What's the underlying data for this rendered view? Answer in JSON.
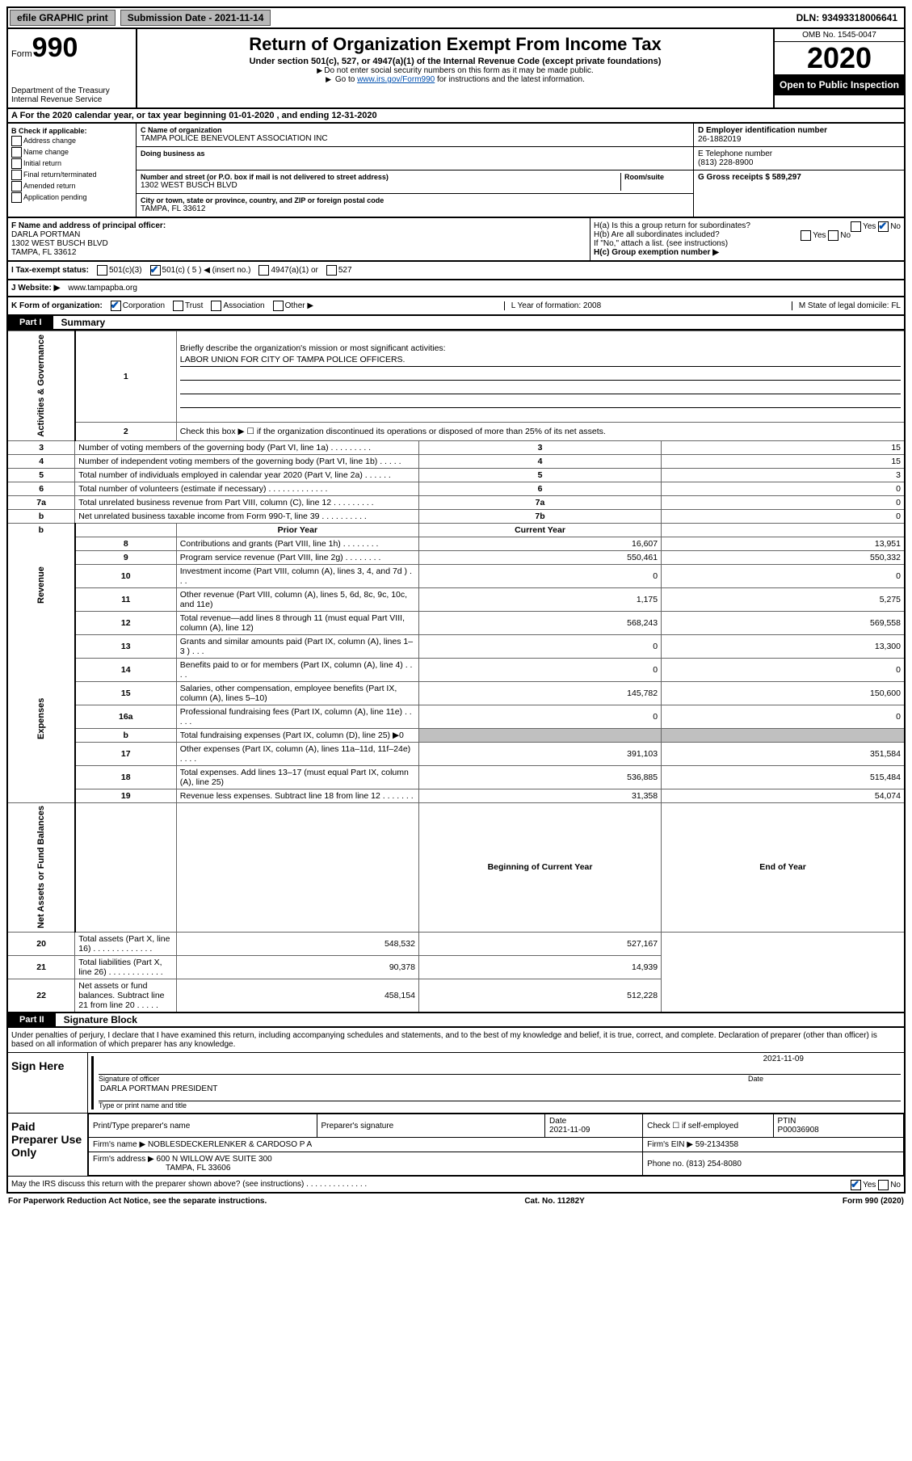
{
  "topbar": {
    "efile": "efile GRAPHIC print",
    "sub_label": "Submission Date - 2021-11-14",
    "dln": "DLN: 93493318006641"
  },
  "header": {
    "form_word": "Form",
    "form_number": "990",
    "dept": "Department of the Treasury\nInternal Revenue Service",
    "title": "Return of Organization Exempt From Income Tax",
    "subtitle": "Under section 501(c), 527, or 4947(a)(1) of the Internal Revenue Code (except private foundations)",
    "note1": "Do not enter social security numbers on this form as it may be made public.",
    "note2_pre": "Go to ",
    "note2_link": "www.irs.gov/Form990",
    "note2_post": " for instructions and the latest information.",
    "omb": "OMB No. 1545-0047",
    "year": "2020",
    "open": "Open to Public Inspection"
  },
  "rowA": "A For the 2020 calendar year, or tax year beginning 01-01-2020   , and ending 12-31-2020",
  "colB": {
    "title": "B Check if applicable:",
    "opts": [
      "Address change",
      "Name change",
      "Initial return",
      "Final return/terminated",
      "Amended return",
      "Application pending"
    ]
  },
  "colC": {
    "name_lbl": "C Name of organization",
    "name": "TAMPA POLICE BENEVOLENT ASSOCIATION INC",
    "dba_lbl": "Doing business as",
    "dba": "",
    "street_lbl": "Number and street (or P.O. box if mail is not delivered to street address)",
    "room_lbl": "Room/suite",
    "street": "1302 WEST BUSCH BLVD",
    "city_lbl": "City or town, state or province, country, and ZIP or foreign postal code",
    "city": "TAMPA, FL  33612"
  },
  "colD": {
    "ein_lbl": "D Employer identification number",
    "ein": "26-1882019",
    "tel_lbl": "E Telephone number",
    "tel": "(813) 228-8900",
    "gross_lbl": "G Gross receipts $ 589,297"
  },
  "rowF": {
    "lbl": "F  Name and address of principal officer:",
    "name": "DARLA PORTMAN",
    "addr1": "1302 WEST BUSCH BLVD",
    "addr2": "TAMPA, FL  33612"
  },
  "rowH": {
    "a_q": "H(a)  Is this a group return for subordinates?",
    "a_yes": "Yes",
    "a_no": "No",
    "b_q": "H(b)  Are all subordinates included?",
    "b_note": "If \"No,\" attach a list. (see instructions)",
    "c_q": "H(c)  Group exemption number ▶"
  },
  "rowI": {
    "lbl": "I  Tax-exempt status:",
    "o1": "501(c)(3)",
    "o2": "501(c) ( 5 ) ◀ (insert no.)",
    "o3": "4947(a)(1) or",
    "o4": "527"
  },
  "rowJ": {
    "lbl": "J  Website: ▶",
    "val": "www.tampapba.org"
  },
  "rowK": {
    "lbl": "K Form of organization:",
    "o1": "Corporation",
    "o2": "Trust",
    "o3": "Association",
    "o4": "Other ▶",
    "l_lbl": "L Year of formation: 2008",
    "m_lbl": "M State of legal domicile: FL"
  },
  "part1": {
    "tag": "Part I",
    "title": "Summary",
    "q1": "Briefly describe the organization's mission or most significant activities:",
    "mission": "LABOR UNION FOR CITY OF TAMPA POLICE OFFICERS.",
    "q2": "Check this box ▶ ☐  if the organization discontinued its operations or disposed of more than 25% of its net assets.",
    "side1": "Activities & Governance",
    "side2": "Revenue",
    "side3": "Expenses",
    "side4": "Net Assets or Fund Balances",
    "hdr_prior": "Prior Year",
    "hdr_curr": "Current Year",
    "hdr_beg": "Beginning of Current Year",
    "hdr_end": "End of Year",
    "lines_gov": [
      {
        "n": "3",
        "d": "Number of voting members of the governing body (Part VI, line 1a)   .   .   .   .   .   .   .   .   .",
        "b": "3",
        "v": "15"
      },
      {
        "n": "4",
        "d": "Number of independent voting members of the governing body (Part VI, line 1b)   .   .   .   .   .",
        "b": "4",
        "v": "15"
      },
      {
        "n": "5",
        "d": "Total number of individuals employed in calendar year 2020 (Part V, line 2a)   .   .   .   .   .   .",
        "b": "5",
        "v": "3"
      },
      {
        "n": "6",
        "d": "Total number of volunteers (estimate if necessary)   .   .   .   .   .   .   .   .   .   .   .   .   .",
        "b": "6",
        "v": "0"
      },
      {
        "n": "7a",
        "d": "Total unrelated business revenue from Part VIII, column (C), line 12   .   .   .   .   .   .   .   .   .",
        "b": "7a",
        "v": "0"
      },
      {
        "n": "b",
        "d": "Net unrelated business taxable income from Form 990-T, line 39   .   .   .   .   .   .   .   .   .   .",
        "b": "7b",
        "v": "0"
      }
    ],
    "lines_rev": [
      {
        "n": "8",
        "d": "Contributions and grants (Part VIII, line 1h)   .   .   .   .   .   .   .   .",
        "p": "16,607",
        "c": "13,951"
      },
      {
        "n": "9",
        "d": "Program service revenue (Part VIII, line 2g)   .   .   .   .   .   .   .   .",
        "p": "550,461",
        "c": "550,332"
      },
      {
        "n": "10",
        "d": "Investment income (Part VIII, column (A), lines 3, 4, and 7d )   .   .   .",
        "p": "0",
        "c": "0"
      },
      {
        "n": "11",
        "d": "Other revenue (Part VIII, column (A), lines 5, 6d, 8c, 9c, 10c, and 11e)",
        "p": "1,175",
        "c": "5,275"
      },
      {
        "n": "12",
        "d": "Total revenue—add lines 8 through 11 (must equal Part VIII, column (A), line 12)",
        "p": "568,243",
        "c": "569,558"
      }
    ],
    "lines_exp": [
      {
        "n": "13",
        "d": "Grants and similar amounts paid (Part IX, column (A), lines 1–3 )   .   .   .",
        "p": "0",
        "c": "13,300"
      },
      {
        "n": "14",
        "d": "Benefits paid to or for members (Part IX, column (A), line 4)   .   .   .   .",
        "p": "0",
        "c": "0"
      },
      {
        "n": "15",
        "d": "Salaries, other compensation, employee benefits (Part IX, column (A), lines 5–10)",
        "p": "145,782",
        "c": "150,600"
      },
      {
        "n": "16a",
        "d": "Professional fundraising fees (Part IX, column (A), line 11e)   .   .   .   .   .",
        "p": "0",
        "c": "0"
      },
      {
        "n": "b",
        "d": "Total fundraising expenses (Part IX, column (D), line 25) ▶0",
        "p": "",
        "c": "",
        "grey": true
      },
      {
        "n": "17",
        "d": "Other expenses (Part IX, column (A), lines 11a–11d, 11f–24e)   .   .   .   .",
        "p": "391,103",
        "c": "351,584"
      },
      {
        "n": "18",
        "d": "Total expenses. Add lines 13–17 (must equal Part IX, column (A), line 25)",
        "p": "536,885",
        "c": "515,484"
      },
      {
        "n": "19",
        "d": "Revenue less expenses. Subtract line 18 from line 12   .   .   .   .   .   .   .",
        "p": "31,358",
        "c": "54,074"
      }
    ],
    "lines_net": [
      {
        "n": "20",
        "d": "Total assets (Part X, line 16)   .   .   .   .   .   .   .   .   .   .   .   .   .",
        "p": "548,532",
        "c": "527,167"
      },
      {
        "n": "21",
        "d": "Total liabilities (Part X, line 26)   .   .   .   .   .   .   .   .   .   .   .   .",
        "p": "90,378",
        "c": "14,939"
      },
      {
        "n": "22",
        "d": "Net assets or fund balances. Subtract line 21 from line 20   .   .   .   .   .",
        "p": "458,154",
        "c": "512,228"
      }
    ]
  },
  "part2": {
    "tag": "Part II",
    "title": "Signature Block",
    "decl": "Under penalties of perjury, I declare that I have examined this return, including accompanying schedules and statements, and to the best of my knowledge and belief, it is true, correct, and complete. Declaration of preparer (other than officer) is based on all information of which preparer has any knowledge.",
    "sign_here": "Sign Here",
    "sig_lbl": "Signature of officer",
    "sig_date": "2021-11-09",
    "sig_date_lbl": "Date",
    "name_line": "DARLA PORTMAN  PRESIDENT",
    "name_lbl": "Type or print name and title",
    "paid": "Paid Preparer Use Only",
    "p_name_lbl": "Print/Type preparer's name",
    "p_sig_lbl": "Preparer's signature",
    "p_date_lbl": "Date",
    "p_date": "2021-11-09",
    "p_check_lbl": "Check ☐ if self-employed",
    "ptin_lbl": "PTIN",
    "ptin": "P00036908",
    "firm_name_lbl": "Firm's name   ▶",
    "firm_name": "NOBLESDECKERLENKER & CARDOSO P A",
    "firm_ein_lbl": "Firm's EIN ▶",
    "firm_ein": "59-2134358",
    "firm_addr_lbl": "Firm's address ▶",
    "firm_addr1": "600 N WILLOW AVE SUITE 300",
    "firm_addr2": "TAMPA, FL  33606",
    "phone_lbl": "Phone no.",
    "phone": "(813) 254-8080",
    "discuss": "May the IRS discuss this return with the preparer shown above? (see instructions)   .   .   .   .   .   .   .   .   .   .   .   .   .   .",
    "yes": "Yes",
    "no": "No"
  },
  "footer": {
    "l": "For Paperwork Reduction Act Notice, see the separate instructions.",
    "m": "Cat. No. 11282Y",
    "r": "Form 990 (2020)"
  }
}
